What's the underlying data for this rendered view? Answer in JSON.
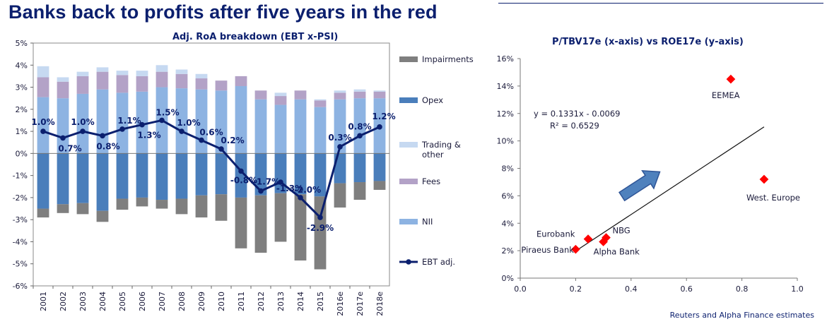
{
  "header": {
    "title": "Banks back to profits after five years in the red"
  },
  "source_note": "Reuters and Alpha Finance estimates",
  "colors": {
    "title": "#0b1f6e",
    "impairments": "#7f7f7f",
    "opex": "#4a7ebb",
    "trading": "#c6d9f1",
    "fees": "#b3a2c7",
    "nii": "#8db3e2",
    "ebt": "#0b1f6e",
    "scatter_point": "#ff0000",
    "arrow": "#4f81bd"
  },
  "chart_data": [
    {
      "type": "bar",
      "stacked": true,
      "title": "Adj. RoA breakdown  (EBT x-PSI)",
      "categories": [
        "2001",
        "2002",
        "2003",
        "2004",
        "2005",
        "2006",
        "2007",
        "2008",
        "2009",
        "2010",
        "2011",
        "2012",
        "2013",
        "2014",
        "2015",
        "2016e",
        "2017e",
        "2018e"
      ],
      "ylim": [
        -6,
        5
      ],
      "yticks": [
        5,
        4,
        3,
        2,
        1,
        0,
        -1,
        -2,
        -3,
        -4,
        -5,
        -6
      ],
      "ytick_labels": [
        "5%",
        "4%",
        "3%",
        "2%",
        "1%",
        "0%",
        "-1%",
        "-2%",
        "-3%",
        "-4%",
        "-5%",
        "-6%"
      ],
      "series": [
        {
          "name": "Impairments",
          "color_key": "impairments",
          "values": [
            -0.4,
            -0.4,
            -0.5,
            -0.5,
            -0.5,
            -0.4,
            -0.4,
            -0.7,
            -1.0,
            -1.2,
            -2.3,
            -2.6,
            -2.2,
            -3.0,
            -3.3,
            -1.1,
            -0.8,
            -0.4
          ]
        },
        {
          "name": "Opex",
          "color_key": "opex",
          "values": [
            -2.5,
            -2.3,
            -2.25,
            -2.6,
            -2.05,
            -2.0,
            -2.1,
            -2.05,
            -1.9,
            -1.85,
            -2.0,
            -1.9,
            -1.8,
            -1.85,
            -1.95,
            -1.35,
            -1.3,
            -1.25
          ]
        },
        {
          "name": "Trading & other",
          "color_key": "trading",
          "values": [
            0.5,
            0.2,
            0.2,
            0.2,
            0.2,
            0.25,
            0.3,
            0.2,
            0.2,
            0.0,
            0.0,
            0.0,
            0.15,
            0.0,
            0.05,
            0.1,
            0.1,
            0.05
          ]
        },
        {
          "name": "Fees",
          "color_key": "fees",
          "values": [
            0.9,
            0.75,
            0.8,
            0.8,
            0.8,
            0.7,
            0.7,
            0.65,
            0.5,
            0.45,
            0.45,
            0.4,
            0.4,
            0.4,
            0.3,
            0.3,
            0.3,
            0.3
          ]
        },
        {
          "name": "NII",
          "color_key": "nii",
          "values": [
            2.55,
            2.5,
            2.7,
            2.9,
            2.75,
            2.8,
            3.0,
            2.95,
            2.9,
            2.85,
            3.05,
            2.45,
            2.2,
            2.45,
            2.1,
            2.45,
            2.5,
            2.5
          ]
        },
        {
          "name": "EBT adj.",
          "type": "line",
          "color_key": "ebt",
          "values": [
            1.0,
            0.7,
            1.0,
            0.8,
            1.1,
            1.3,
            1.5,
            1.0,
            0.6,
            0.2,
            -0.8,
            -1.7,
            -1.3,
            -2.0,
            -2.9,
            0.3,
            0.8,
            1.2
          ],
          "data_labels": [
            "1.0%",
            "0.7%",
            "1.0%",
            "0.8%",
            "1.1%",
            "1.3%",
            "1.5%",
            "1.0%",
            "0.6%",
            "0.2%",
            "-0.8%",
            "-1.7%",
            "-1.3%",
            "-2.0%",
            "-2.9%",
            "0.3%",
            "0.8%",
            "1.2%"
          ]
        }
      ],
      "legend": [
        "Impairments",
        "Opex",
        "Trading & other",
        "Fees",
        "NII",
        "EBT adj."
      ],
      "legend_lines": [
        [
          "Impairments"
        ],
        [
          "Opex"
        ],
        [
          "Trading &",
          "other"
        ],
        [
          "Fees"
        ],
        [
          "NII"
        ],
        [
          "EBT adj."
        ]
      ],
      "legend_position": "right",
      "grid": false
    },
    {
      "type": "scatter",
      "title": "P/TBV17e (x-axis)  vs ROE17e (y-axis)",
      "xlim": [
        0,
        1.0
      ],
      "ylim": [
        0,
        16
      ],
      "xticks": [
        0,
        0.2,
        0.4,
        0.6,
        0.8,
        1.0
      ],
      "xtick_labels": [
        "0.0",
        "0.2",
        "0.4",
        "0.6",
        "0.8",
        "1.0"
      ],
      "yticks": [
        0,
        2,
        4,
        6,
        8,
        10,
        12,
        14,
        16
      ],
      "ytick_labels": [
        "0%",
        "2%",
        "4%",
        "6%",
        "8%",
        "10%",
        "12%",
        "14%",
        "16%"
      ],
      "points": [
        {
          "name": "Piraeus Bank",
          "x": 0.2,
          "y": 2.1
        },
        {
          "name": "Eurobank",
          "x": 0.245,
          "y": 2.85
        },
        {
          "name": "Alpha Bank",
          "x": 0.3,
          "y": 2.65
        },
        {
          "name": "NBG",
          "x": 0.31,
          "y": 2.95
        },
        {
          "name": "EEMEA",
          "x": 0.76,
          "y": 14.5
        },
        {
          "name": "West. Europe",
          "x": 0.88,
          "y": 7.2
        }
      ],
      "trendline": {
        "slope": 0.1331,
        "intercept": -0.0069,
        "x_range": [
          0.2,
          0.88
        ]
      },
      "equation": "y = 0.1331x - 0.0069",
      "r_squared": "R² = 0.6529",
      "grid": false
    }
  ]
}
